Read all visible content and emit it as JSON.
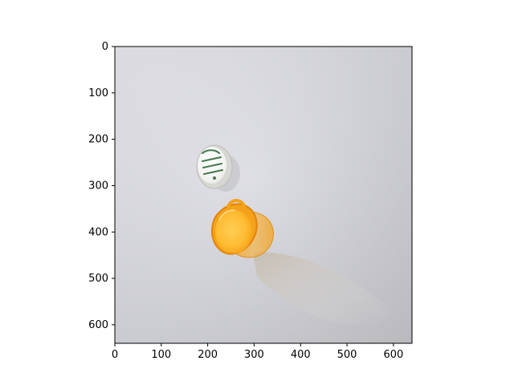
{
  "image_plot": {
    "type": "image",
    "image_size": [
      640,
      640
    ],
    "xlim": [
      0,
      640
    ],
    "ylim": [
      640,
      0
    ],
    "x_ticks": [
      0,
      100,
      200,
      300,
      400,
      500,
      600
    ],
    "y_ticks": [
      0,
      100,
      200,
      300,
      400,
      500,
      600
    ],
    "x_tick_labels": [
      "0",
      "100",
      "200",
      "300",
      "400",
      "500",
      "600"
    ],
    "y_tick_labels": [
      "0",
      "100",
      "200",
      "300",
      "400",
      "500",
      "600"
    ],
    "scene": {
      "objects": [
        "white-bottle-cap",
        "orange-pill-bottle"
      ],
      "colors": {
        "background": "#d8d8de",
        "cap": "#f4f4f2",
        "cap_text": "#2f6b3b",
        "bottle": "#f3a21a",
        "bottle_highlight": "#ffd15a"
      }
    }
  }
}
